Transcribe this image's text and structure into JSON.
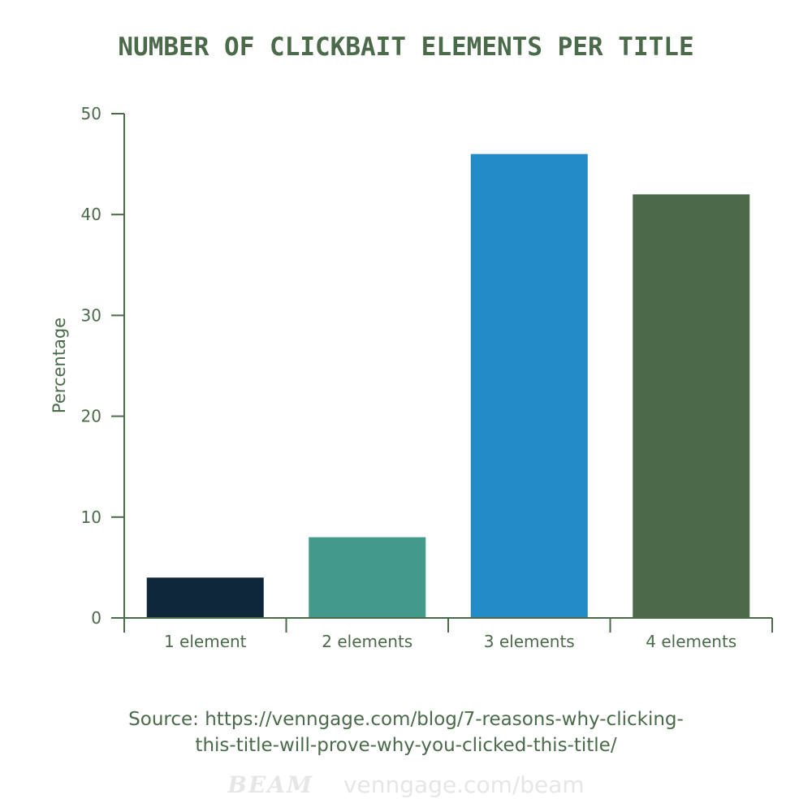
{
  "chart_data": {
    "type": "bar",
    "title": "NUMBER OF CLICKBAIT ELEMENTS PER TITLE",
    "xlabel": "",
    "ylabel": "Percentage",
    "categories": [
      "1 element",
      "2 elements",
      "3 elements",
      "4 elements"
    ],
    "values": [
      4,
      8,
      46,
      42
    ],
    "bar_colors": [
      "#0e263a",
      "#419a8a",
      "#228bc6",
      "#4a6a4a"
    ],
    "ylim": [
      0,
      50
    ],
    "yticks": [
      0,
      10,
      20,
      30,
      40,
      50
    ],
    "grid": false,
    "legend": "none"
  },
  "axis_color": "#4a6a4a",
  "source_lines": [
    "Source: https://venngage.com/blog/7-reasons-why-clicking-",
    "this-title-will-prove-why-you-clicked-this-title/"
  ],
  "watermark": {
    "brand": "BEAM",
    "site": "venngage.com/beam"
  }
}
